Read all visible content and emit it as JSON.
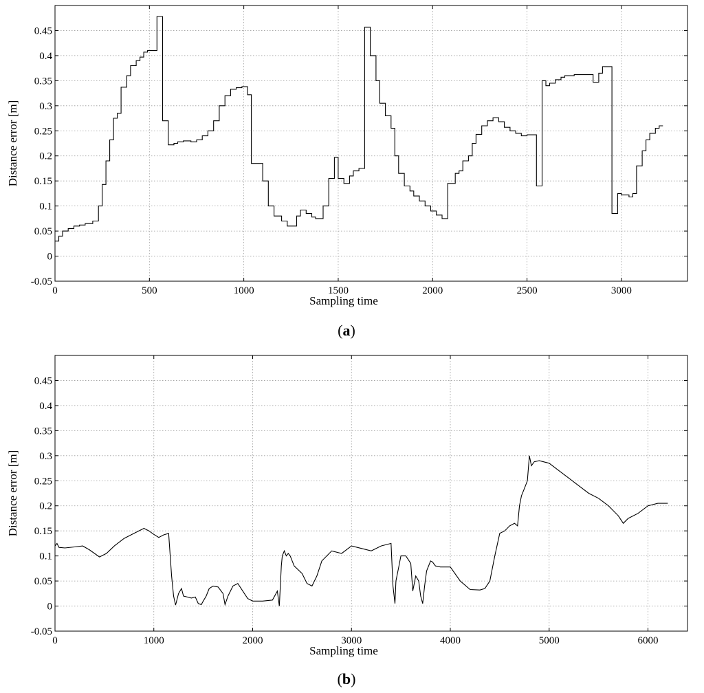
{
  "chart_data": [
    {
      "type": "line",
      "panel_label": "a",
      "xlabel": "Sampling time",
      "ylabel": "Distance error [m]",
      "xlim": [
        0,
        3350
      ],
      "ylim": [
        -0.05,
        0.5
      ],
      "xticks": [
        0,
        500,
        1000,
        1500,
        2000,
        2500,
        3000
      ],
      "yticks": [
        -0.05,
        0,
        0.05,
        0.1,
        0.15,
        0.2,
        0.25,
        0.3,
        0.35,
        0.4,
        0.45
      ],
      "grid": true,
      "step": true,
      "series": [
        {
          "x": [
            0,
            20,
            40,
            70,
            100,
            130,
            160,
            200,
            230,
            250,
            270,
            290,
            310,
            330,
            350,
            380,
            400,
            430,
            450,
            470,
            490,
            510,
            540,
            570,
            600,
            630,
            650,
            680,
            720,
            750,
            780,
            810,
            840,
            870,
            900,
            930,
            960,
            990,
            1020,
            1040,
            1100,
            1130,
            1160,
            1200,
            1230,
            1280,
            1300,
            1330,
            1360,
            1380,
            1420,
            1450,
            1480,
            1500,
            1530,
            1560,
            1580,
            1610,
            1640,
            1670,
            1700,
            1720,
            1750,
            1780,
            1800,
            1820,
            1850,
            1880,
            1900,
            1930,
            1960,
            1990,
            2020,
            2050,
            2080,
            2120,
            2140,
            2160,
            2190,
            2210,
            2230,
            2260,
            2290,
            2320,
            2350,
            2380,
            2410,
            2440,
            2470,
            2500,
            2550,
            2580,
            2600,
            2620,
            2650,
            2680,
            2700,
            2750,
            2780,
            2850,
            2880,
            2900,
            2950,
            2980,
            3000,
            3040,
            3060,
            3080,
            3110,
            3130,
            3150,
            3180,
            3200,
            3220
          ],
          "y": [
            0.03,
            0.04,
            0.05,
            0.055,
            0.06,
            0.062,
            0.065,
            0.07,
            0.1,
            0.143,
            0.19,
            0.232,
            0.275,
            0.285,
            0.337,
            0.36,
            0.38,
            0.39,
            0.397,
            0.407,
            0.41,
            0.41,
            0.478,
            0.27,
            0.222,
            0.225,
            0.228,
            0.23,
            0.228,
            0.232,
            0.24,
            0.25,
            0.27,
            0.3,
            0.32,
            0.333,
            0.336,
            0.338,
            0.322,
            0.185,
            0.15,
            0.1,
            0.08,
            0.07,
            0.06,
            0.08,
            0.092,
            0.085,
            0.078,
            0.075,
            0.1,
            0.155,
            0.197,
            0.155,
            0.145,
            0.16,
            0.17,
            0.175,
            0.457,
            0.4,
            0.35,
            0.305,
            0.28,
            0.255,
            0.2,
            0.165,
            0.14,
            0.13,
            0.12,
            0.11,
            0.1,
            0.09,
            0.082,
            0.075,
            0.145,
            0.165,
            0.17,
            0.19,
            0.2,
            0.225,
            0.243,
            0.26,
            0.27,
            0.276,
            0.268,
            0.257,
            0.25,
            0.245,
            0.24,
            0.242,
            0.14,
            0.35,
            0.34,
            0.345,
            0.352,
            0.357,
            0.36,
            0.362,
            0.362,
            0.347,
            0.365,
            0.378,
            0.085,
            0.125,
            0.122,
            0.118,
            0.125,
            0.18,
            0.21,
            0.232,
            0.245,
            0.255,
            0.26,
            0.26
          ]
        }
      ]
    },
    {
      "type": "line",
      "panel_label": "b",
      "xlabel": "Sampling time",
      "ylabel": "Distance error [m]",
      "xlim": [
        0,
        6400
      ],
      "ylim": [
        -0.05,
        0.5
      ],
      "xticks": [
        0,
        1000,
        2000,
        3000,
        4000,
        5000,
        6000
      ],
      "yticks": [
        -0.05,
        0,
        0.05,
        0.1,
        0.15,
        0.2,
        0.25,
        0.3,
        0.35,
        0.4,
        0.45
      ],
      "grid": true,
      "step": false,
      "series": [
        {
          "x": [
            0,
            20,
            40,
            100,
            200,
            280,
            350,
            450,
            520,
            600,
            700,
            800,
            900,
            950,
            1000,
            1050,
            1100,
            1150,
            1180,
            1200,
            1220,
            1250,
            1280,
            1300,
            1340,
            1380,
            1420,
            1450,
            1480,
            1500,
            1530,
            1560,
            1600,
            1650,
            1700,
            1720,
            1750,
            1800,
            1850,
            1900,
            1950,
            2000,
            2100,
            2200,
            2250,
            2270,
            2290,
            2300,
            2320,
            2340,
            2360,
            2380,
            2400,
            2420,
            2500,
            2550,
            2600,
            2650,
            2700,
            2800,
            2900,
            3000,
            3100,
            3200,
            3300,
            3400,
            3420,
            3440,
            3450,
            3480,
            3500,
            3550,
            3600,
            3620,
            3650,
            3680,
            3700,
            3720,
            3740,
            3760,
            3800,
            3820,
            3850,
            3900,
            4000,
            4100,
            4200,
            4300,
            4350,
            4400,
            4450,
            4500,
            4550,
            4600,
            4650,
            4680,
            4700,
            4720,
            4740,
            4760,
            4780,
            4800,
            4820,
            4850,
            4900,
            5000,
            5100,
            5200,
            5300,
            5400,
            5500,
            5600,
            5700,
            5750,
            5800,
            5900,
            6000,
            6100,
            6200
          ],
          "y": [
            0.12,
            0.125,
            0.117,
            0.116,
            0.118,
            0.12,
            0.112,
            0.098,
            0.105,
            0.12,
            0.135,
            0.145,
            0.155,
            0.15,
            0.143,
            0.137,
            0.142,
            0.145,
            0.06,
            0.02,
            0.002,
            0.025,
            0.035,
            0.02,
            0.018,
            0.016,
            0.018,
            0.005,
            0.003,
            0.01,
            0.02,
            0.035,
            0.04,
            0.038,
            0.025,
            0.003,
            0.02,
            0.04,
            0.045,
            0.03,
            0.015,
            0.01,
            0.01,
            0.012,
            0.03,
            0.0,
            0.08,
            0.1,
            0.11,
            0.1,
            0.105,
            0.1,
            0.09,
            0.08,
            0.065,
            0.045,
            0.04,
            0.06,
            0.09,
            0.11,
            0.105,
            0.12,
            0.115,
            0.11,
            0.12,
            0.125,
            0.04,
            0.005,
            0.05,
            0.08,
            0.1,
            0.1,
            0.085,
            0.03,
            0.06,
            0.05,
            0.02,
            0.005,
            0.04,
            0.07,
            0.09,
            0.088,
            0.08,
            0.078,
            0.078,
            0.05,
            0.033,
            0.032,
            0.035,
            0.05,
            0.1,
            0.145,
            0.15,
            0.16,
            0.165,
            0.16,
            0.2,
            0.22,
            0.23,
            0.24,
            0.25,
            0.3,
            0.28,
            0.288,
            0.29,
            0.285,
            0.27,
            0.255,
            0.24,
            0.225,
            0.215,
            0.2,
            0.18,
            0.165,
            0.175,
            0.185,
            0.2,
            0.205,
            0.205
          ]
        }
      ]
    }
  ]
}
